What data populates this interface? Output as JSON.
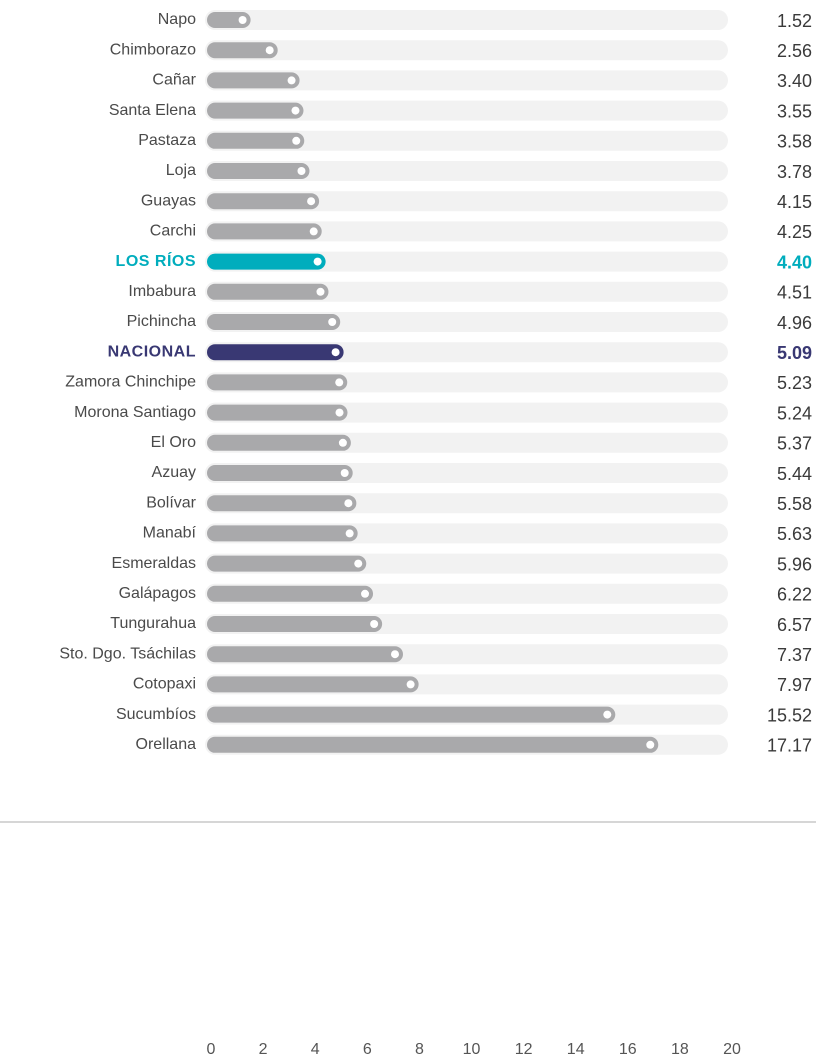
{
  "chart_data": {
    "type": "bar",
    "orientation": "horizontal",
    "categories": [
      "Napo",
      "Chimborazo",
      "Cañar",
      "Santa Elena",
      "Pastaza",
      "Loja",
      "Guayas",
      "Carchi",
      "LOS RÍOS",
      "Imbabura",
      "Pichincha",
      "NACIONAL",
      "Zamora Chinchipe",
      "Morona Santiago",
      "El Oro",
      "Azuay",
      "Bolívar",
      "Manabí",
      "Esmeraldas",
      "Galápagos",
      "Tungurahua",
      "Sto. Dgo. Tsáchilas",
      "Cotopaxi",
      "Sucumbíos",
      "Orellana"
    ],
    "values": [
      1.52,
      2.56,
      3.4,
      3.55,
      3.58,
      3.78,
      4.15,
      4.25,
      4.4,
      4.51,
      4.96,
      5.09,
      5.23,
      5.24,
      5.37,
      5.44,
      5.58,
      5.63,
      5.96,
      6.22,
      6.57,
      7.37,
      7.97,
      15.52,
      17.17
    ],
    "value_labels": [
      "1.52",
      "2.56",
      "3.40",
      "3.55",
      "3.58",
      "3.78",
      "4.15",
      "4.25",
      "4.40",
      "4.51",
      "4.96",
      "5.09",
      "5.23",
      "5.24",
      "5.37",
      "5.44",
      "5.58",
      "5.63",
      "5.96",
      "6.22",
      "6.57",
      "7.37",
      "7.97",
      "15.52",
      "17.17"
    ],
    "colors": [
      "#a9a9ab",
      "#a9a9ab",
      "#a9a9ab",
      "#a9a9ab",
      "#a9a9ab",
      "#a9a9ab",
      "#a9a9ab",
      "#a9a9ab",
      "#00adbd",
      "#a9a9ab",
      "#a9a9ab",
      "#393873",
      "#a9a9ab",
      "#a9a9ab",
      "#a9a9ab",
      "#a9a9ab",
      "#a9a9ab",
      "#a9a9ab",
      "#a9a9ab",
      "#a9a9ab",
      "#a9a9ab",
      "#a9a9ab",
      "#a9a9ab",
      "#a9a9ab",
      "#a9a9ab"
    ],
    "xlim": [
      0,
      20
    ],
    "xticks": [
      0,
      2,
      4,
      6,
      8,
      10,
      12,
      14,
      16,
      18,
      20
    ]
  }
}
